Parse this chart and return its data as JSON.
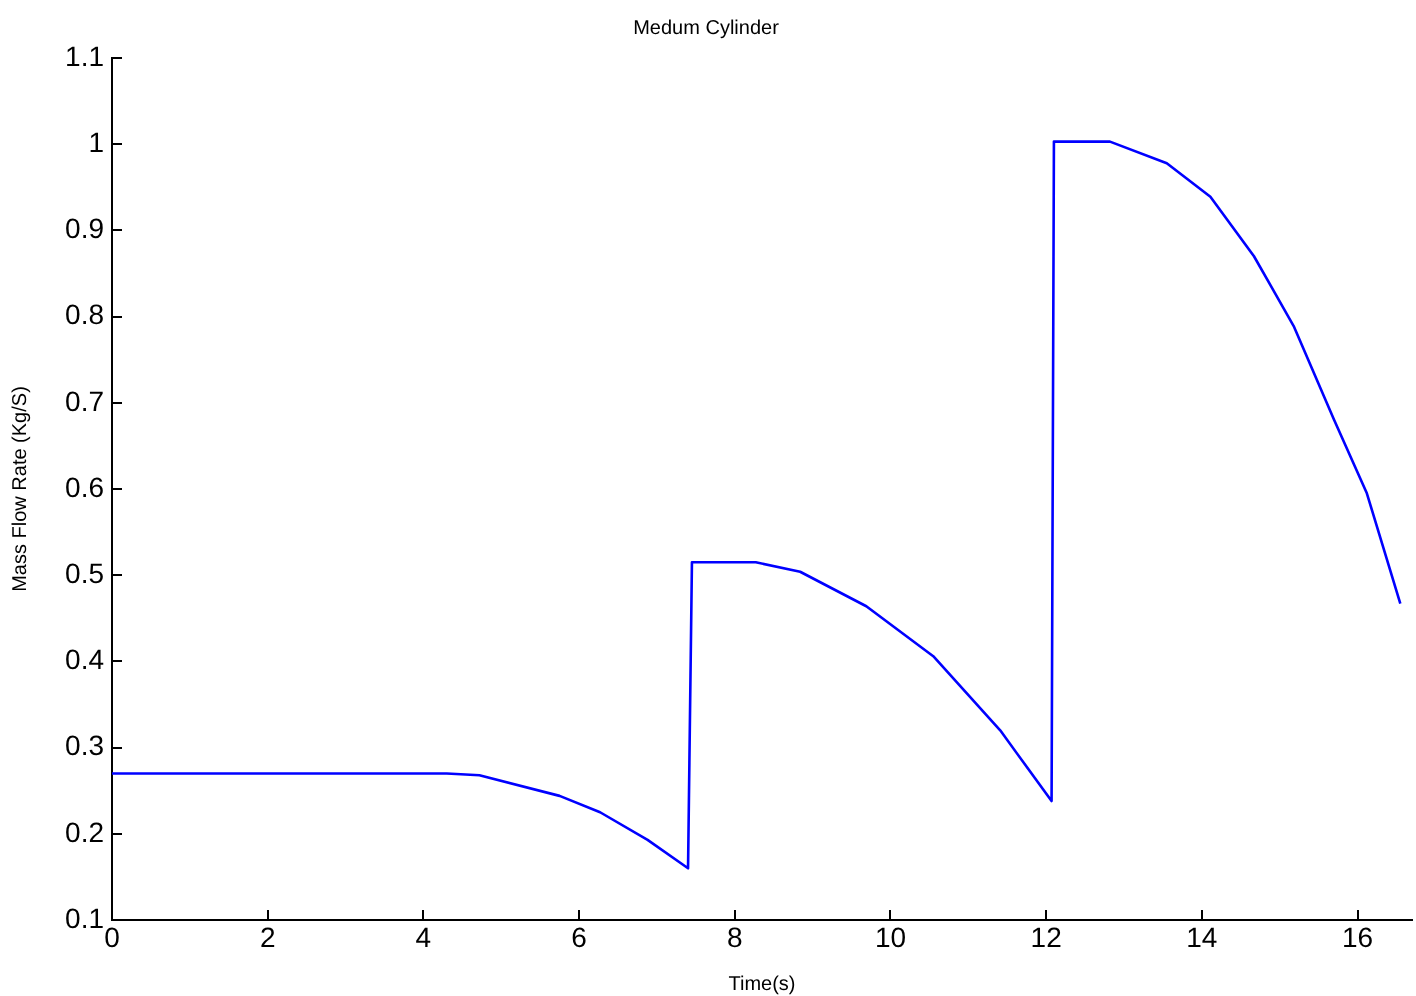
{
  "chart_data": {
    "type": "line",
    "title": "Medum Cylinder",
    "xlabel": "Time(s)",
    "ylabel": "Mass Flow Rate (Kg/S)",
    "xlim": [
      0,
      16.7
    ],
    "xticks": [
      0,
      2,
      4,
      6,
      8,
      10,
      12,
      14,
      16
    ],
    "ylim": [
      0.1,
      1.1
    ],
    "yticks": [
      0.1,
      0.2,
      0.3,
      0.4,
      0.5,
      0.6,
      0.7,
      0.8,
      0.9,
      1,
      1.1
    ],
    "grid": false,
    "legend": false,
    "marker": "none",
    "line_style": "solid",
    "series": [
      {
        "color": "#0000ff",
        "x": [
          0,
          4.3,
          4.72,
          5.75,
          6.27,
          6.88,
          7.4,
          7.45,
          8.27,
          8.84,
          9.69,
          10.55,
          11.41,
          12.07,
          12.1,
          12.82,
          13.55,
          14.11,
          14.67,
          15.18,
          15.7,
          16.12,
          16.55
        ],
        "values": [
          0.27,
          0.27,
          0.268,
          0.244,
          0.225,
          0.193,
          0.16,
          0.515,
          0.515,
          0.504,
          0.464,
          0.406,
          0.32,
          0.238,
          1.003,
          1.003,
          0.978,
          0.939,
          0.87,
          0.789,
          0.68,
          0.595,
          0.467
        ]
      }
    ]
  }
}
